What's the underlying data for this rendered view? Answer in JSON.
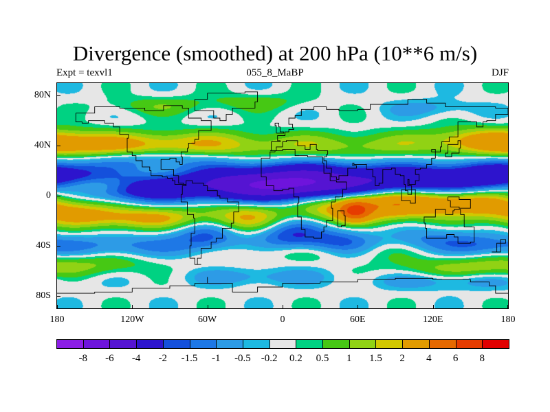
{
  "chart_data": {
    "type": "contour map",
    "title": "Divergence (smoothed) at 200 hPa (10**6 m/s)",
    "subtitle_left": "Expt = texvl1",
    "subtitle_center": "055_8_MaBP",
    "subtitle_right": "DJF",
    "xlim": [
      -180,
      180
    ],
    "ylim": [
      -90,
      90
    ],
    "xticks": [
      {
        "value": -180,
        "label": "180"
      },
      {
        "value": -120,
        "label": "120W"
      },
      {
        "value": -60,
        "label": "60W"
      },
      {
        "value": 0,
        "label": "0"
      },
      {
        "value": 60,
        "label": "60E"
      },
      {
        "value": 120,
        "label": "120E"
      },
      {
        "value": 180,
        "label": "180"
      }
    ],
    "yticks": [
      {
        "value": 80,
        "label": "80N"
      },
      {
        "value": 40,
        "label": "40N"
      },
      {
        "value": 0,
        "label": "0"
      },
      {
        "value": -40,
        "label": "40S"
      },
      {
        "value": -80,
        "label": "80S"
      }
    ],
    "levels": [
      -8,
      -6,
      -4,
      -2,
      -1.5,
      -1,
      -0.5,
      -0.2,
      0.2,
      0.5,
      1,
      1.5,
      2,
      4,
      6,
      8
    ],
    "level_labels": [
      "-8",
      "-6",
      "-4",
      "-2",
      "-1.5",
      "-1",
      "-0.5",
      "-0.2",
      "0.2",
      "0.5",
      "1",
      "1.5",
      "2",
      "4",
      "6",
      "8"
    ],
    "colors": [
      "#8c1ee6",
      "#6e14dc",
      "#5514d2",
      "#2d14cd",
      "#1450dc",
      "#1e78e6",
      "#2d9be6",
      "#1eb9e1",
      "#e6e6e6",
      "#00d282",
      "#46c814",
      "#91d214",
      "#d2c800",
      "#e19b00",
      "#e66900",
      "#e63c00",
      "#e10000"
    ],
    "field_features": [
      {
        "lon": -120,
        "lat": 5,
        "amp": -2.4,
        "sx": 30,
        "sy": 7
      },
      {
        "lon": -40,
        "lat": 8,
        "amp": -3.2,
        "sx": 45,
        "sy": 9
      },
      {
        "lon": 20,
        "lat": 10,
        "amp": -5.0,
        "sx": 45,
        "sy": 10
      },
      {
        "lon": 110,
        "lat": 12,
        "amp": -2.6,
        "sx": 40,
        "sy": 9
      },
      {
        "lon": 160,
        "lat": 15,
        "amp": -1.8,
        "sx": 30,
        "sy": 8
      },
      {
        "lon": -170,
        "lat": 18,
        "amp": -1.6,
        "sx": 25,
        "sy": 7
      },
      {
        "lon": -100,
        "lat": 30,
        "amp": -1.4,
        "sx": 40,
        "sy": 6
      },
      {
        "lon": -140,
        "lat": 40,
        "amp": 1.7,
        "sx": 45,
        "sy": 7
      },
      {
        "lon": -60,
        "lat": 40,
        "amp": 1.6,
        "sx": 50,
        "sy": 8
      },
      {
        "lon": 60,
        "lat": 40,
        "amp": 1.2,
        "sx": 50,
        "sy": 7
      },
      {
        "lon": 150,
        "lat": 45,
        "amp": 1.5,
        "sx": 30,
        "sy": 7
      },
      {
        "lon": -175,
        "lat": 42,
        "amp": 1.3,
        "sx": 25,
        "sy": 7
      },
      {
        "lon": -150,
        "lat": 8,
        "amp": 1.5,
        "sx": 25,
        "sy": 5
      },
      {
        "lon": -30,
        "lat": -18,
        "amp": 2.5,
        "sx": 35,
        "sy": 9
      },
      {
        "lon": 60,
        "lat": -8,
        "amp": 3.0,
        "sx": 40,
        "sy": 9
      },
      {
        "lon": 58,
        "lat": -12,
        "amp": 4.5,
        "sx": 8,
        "sy": 5
      },
      {
        "lon": 95,
        "lat": -5,
        "amp": 2.0,
        "sx": 30,
        "sy": 7
      },
      {
        "lon": 150,
        "lat": -5,
        "amp": 2.3,
        "sx": 30,
        "sy": 7
      },
      {
        "lon": -165,
        "lat": -15,
        "amp": 2.0,
        "sx": 30,
        "sy": 7
      },
      {
        "lon": -110,
        "lat": -18,
        "amp": 1.8,
        "sx": 30,
        "sy": 6
      },
      {
        "lon": -60,
        "lat": -30,
        "amp": -2.0,
        "sx": 20,
        "sy": 10
      },
      {
        "lon": 5,
        "lat": -28,
        "amp": -2.4,
        "sx": 20,
        "sy": 12
      },
      {
        "lon": 45,
        "lat": -38,
        "amp": -1.8,
        "sx": 20,
        "sy": 8
      },
      {
        "lon": -130,
        "lat": -40,
        "amp": -1.2,
        "sx": 45,
        "sy": 6
      },
      {
        "lon": 120,
        "lat": -35,
        "amp": -1.1,
        "sx": 25,
        "sy": 7
      },
      {
        "lon": 160,
        "lat": -40,
        "amp": -1.0,
        "sx": 20,
        "sy": 6
      },
      {
        "lon": -160,
        "lat": -55,
        "amp": 0.9,
        "sx": 40,
        "sy": 6
      },
      {
        "lon": 20,
        "lat": -45,
        "amp": 1.0,
        "sx": 50,
        "sy": 6
      },
      {
        "lon": 140,
        "lat": -58,
        "amp": 1.0,
        "sx": 40,
        "sy": 6
      },
      {
        "lon": -20,
        "lat": -65,
        "amp": -0.8,
        "sx": 40,
        "sy": 5
      },
      {
        "lon": 130,
        "lat": -68,
        "amp": -0.9,
        "sx": 40,
        "sy": 5
      },
      {
        "lon": -20,
        "lat": 75,
        "amp": 0.7,
        "sx": 30,
        "sy": 5
      },
      {
        "lon": -100,
        "lat": 72,
        "amp": 0.8,
        "sx": 30,
        "sy": 5
      },
      {
        "lon": 120,
        "lat": 70,
        "amp": -0.7,
        "sx": 25,
        "sy": 5
      }
    ],
    "coastlines": [
      [
        [
          -165,
          66
        ],
        [
          -150,
          71
        ],
        [
          -130,
          70
        ],
        [
          -110,
          68
        ],
        [
          -95,
          72
        ],
        [
          -80,
          70
        ],
        [
          -75,
          62
        ],
        [
          -65,
          60
        ],
        [
          -57,
          52
        ],
        [
          -67,
          45
        ],
        [
          -70,
          42
        ],
        [
          -75,
          38
        ],
        [
          -76,
          35
        ],
        [
          -81,
          31
        ],
        [
          -80,
          25
        ],
        [
          -82,
          27
        ],
        [
          -85,
          30
        ],
        [
          -90,
          29
        ],
        [
          -97,
          26
        ],
        [
          -97,
          21
        ],
        [
          -90,
          21
        ],
        [
          -87,
          16
        ],
        [
          -83,
          10
        ],
        [
          -79,
          9
        ],
        [
          -77,
          8
        ],
        [
          -80,
          1
        ],
        [
          -81,
          -5
        ],
        [
          -76,
          -15
        ],
        [
          -71,
          -18
        ],
        [
          -70,
          -30
        ],
        [
          -73,
          -40
        ],
        [
          -74,
          -50
        ],
        [
          -70,
          -55
        ],
        [
          -65,
          -55
        ],
        [
          -68,
          -50
        ],
        [
          -65,
          -42
        ],
        [
          -57,
          -37
        ],
        [
          -53,
          -34
        ],
        [
          -48,
          -26
        ],
        [
          -41,
          -22
        ],
        [
          -39,
          -13
        ],
        [
          -35,
          -8
        ],
        [
          -35,
          -5
        ],
        [
          -44,
          -2
        ],
        [
          -50,
          0
        ],
        [
          -52,
          4
        ],
        [
          -60,
          8
        ],
        [
          -63,
          10
        ],
        [
          -72,
          12
        ],
        [
          -77,
          9
        ],
        [
          -83,
          9
        ],
        [
          -86,
          12
        ],
        [
          -88,
          14
        ],
        [
          -92,
          15
        ],
        [
          -96,
          16
        ],
        [
          -105,
          20
        ],
        [
          -106,
          23
        ],
        [
          -110,
          23
        ],
        [
          -112,
          28
        ],
        [
          -117,
          32
        ],
        [
          -120,
          35
        ],
        [
          -124,
          40
        ],
        [
          -124,
          46
        ],
        [
          -123,
          49
        ],
        [
          -130,
          55
        ],
        [
          -135,
          58
        ],
        [
          -142,
          60
        ],
        [
          -150,
          60
        ],
        [
          -155,
          58
        ],
        [
          -160,
          59
        ],
        [
          -165,
          60
        ],
        [
          -165,
          66
        ]
      ],
      [
        [
          -10,
          36
        ],
        [
          -9,
          43
        ],
        [
          -2,
          44
        ],
        [
          -4,
          48
        ],
        [
          2,
          51
        ],
        [
          5,
          53
        ],
        [
          9,
          54
        ],
        [
          8,
          57
        ],
        [
          5,
          62
        ],
        [
          10,
          64
        ],
        [
          15,
          69
        ],
        [
          25,
          71
        ],
        [
          35,
          69
        ],
        [
          45,
          68
        ],
        [
          60,
          69
        ],
        [
          70,
          73
        ],
        [
          80,
          73
        ],
        [
          100,
          77
        ],
        [
          115,
          74
        ],
        [
          130,
          71
        ],
        [
          150,
          71
        ],
        [
          170,
          70
        ],
        [
          180,
          69
        ],
        [
          180,
          65
        ],
        [
          170,
          60
        ],
        [
          163,
          59
        ],
        [
          160,
          55
        ],
        [
          155,
          59
        ],
        [
          140,
          54
        ],
        [
          140,
          47
        ],
        [
          133,
          43
        ],
        [
          127,
          39
        ],
        [
          126,
          35
        ],
        [
          122,
          37
        ],
        [
          119,
          35
        ],
        [
          122,
          30
        ],
        [
          119,
          25
        ],
        [
          115,
          22
        ],
        [
          110,
          21
        ],
        [
          106,
          17
        ],
        [
          109,
          12
        ],
        [
          106,
          9
        ],
        [
          101,
          13
        ],
        [
          100,
          8
        ],
        [
          103,
          1
        ],
        [
          100,
          4
        ],
        [
          98,
          9
        ],
        [
          97,
          16
        ],
        [
          94,
          17
        ],
        [
          90,
          22
        ],
        [
          87,
          21
        ],
        [
          80,
          15
        ],
        [
          80,
          10
        ],
        [
          77,
          8
        ],
        [
          74,
          15
        ],
        [
          72,
          21
        ],
        [
          67,
          25
        ],
        [
          61,
          25
        ],
        [
          57,
          26
        ],
        [
          56,
          24
        ],
        [
          59,
          22
        ],
        [
          52,
          16
        ],
        [
          45,
          13
        ],
        [
          43,
          15
        ],
        [
          39,
          22
        ],
        [
          35,
          28
        ],
        [
          33,
          31
        ],
        [
          35,
          33
        ],
        [
          36,
          36
        ],
        [
          28,
          37
        ],
        [
          27,
          41
        ],
        [
          22,
          37
        ],
        [
          18,
          40
        ],
        [
          12,
          44
        ],
        [
          10,
          44
        ],
        [
          3,
          43
        ],
        [
          0,
          39
        ],
        [
          -5,
          36
        ],
        [
          -10,
          36
        ]
      ],
      [
        [
          -6,
          35
        ],
        [
          -10,
          30
        ],
        [
          -17,
          21
        ],
        [
          -17,
          15
        ],
        [
          -13,
          8
        ],
        [
          -7,
          4
        ],
        [
          0,
          5
        ],
        [
          5,
          6
        ],
        [
          9,
          4
        ],
        [
          9,
          -1
        ],
        [
          13,
          -6
        ],
        [
          12,
          -17
        ],
        [
          15,
          -27
        ],
        [
          18,
          -33
        ],
        [
          25,
          -34
        ],
        [
          31,
          -29
        ],
        [
          33,
          -25
        ],
        [
          35,
          -20
        ],
        [
          40,
          -16
        ],
        [
          40,
          -10
        ],
        [
          39,
          -5
        ],
        [
          42,
          -1
        ],
        [
          48,
          5
        ],
        [
          51,
          11
        ],
        [
          45,
          11
        ],
        [
          43,
          12
        ],
        [
          38,
          18
        ],
        [
          33,
          26
        ],
        [
          32,
          31
        ],
        [
          20,
          32
        ],
        [
          10,
          37
        ],
        [
          0,
          36
        ],
        [
          -6,
          35
        ]
      ],
      [
        [
          113,
          -22
        ],
        [
          114,
          -26
        ],
        [
          115,
          -34
        ],
        [
          123,
          -34
        ],
        [
          131,
          -31
        ],
        [
          137,
          -33
        ],
        [
          140,
          -38
        ],
        [
          145,
          -38
        ],
        [
          150,
          -37
        ],
        [
          153,
          -28
        ],
        [
          153,
          -25
        ],
        [
          145,
          -15
        ],
        [
          142,
          -11
        ],
        [
          137,
          -12
        ],
        [
          136,
          -15
        ],
        [
          130,
          -11
        ],
        [
          122,
          -17
        ],
        [
          113,
          -22
        ]
      ],
      [
        [
          44,
          -25
        ],
        [
          47,
          -24
        ],
        [
          50,
          -16
        ],
        [
          49,
          -12
        ],
        [
          44,
          -16
        ],
        [
          44,
          -25
        ]
      ],
      [
        [
          -60,
          82
        ],
        [
          -30,
          83
        ],
        [
          -20,
          80
        ],
        [
          -20,
          75
        ],
        [
          -22,
          70
        ],
        [
          -40,
          65
        ],
        [
          -45,
          60
        ],
        [
          -50,
          62
        ],
        [
          -55,
          68
        ],
        [
          -70,
          77
        ],
        [
          -60,
          82
        ]
      ],
      [
        [
          -180,
          -78
        ],
        [
          -150,
          -77
        ],
        [
          -120,
          -74
        ],
        [
          -90,
          -72
        ],
        [
          -70,
          -70
        ],
        [
          -60,
          -65
        ],
        [
          -60,
          -70
        ],
        [
          -40,
          -77
        ],
        [
          -20,
          -73
        ],
        [
          0,
          -70
        ],
        [
          30,
          -69
        ],
        [
          60,
          -67
        ],
        [
          90,
          -66
        ],
        [
          120,
          -67
        ],
        [
          150,
          -69
        ],
        [
          165,
          -72
        ],
        [
          170,
          -78
        ],
        [
          180,
          -78
        ]
      ],
      [
        [
          -5,
          50
        ],
        [
          1,
          51
        ],
        [
          -2,
          55
        ],
        [
          -3,
          58
        ],
        [
          -6,
          56
        ],
        [
          -5,
          50
        ]
      ],
      [
        [
          130,
          31
        ],
        [
          135,
          34
        ],
        [
          141,
          38
        ],
        [
          142,
          44
        ],
        [
          140,
          41
        ],
        [
          132,
          34
        ],
        [
          130,
          31
        ]
      ],
      [
        [
          95,
          5
        ],
        [
          106,
          -6
        ],
        [
          102,
          -4
        ],
        [
          95,
          5
        ]
      ],
      [
        [
          132,
          -1
        ],
        [
          141,
          -3
        ],
        [
          150,
          -10
        ],
        [
          141,
          -9
        ],
        [
          134,
          -4
        ],
        [
          132,
          -1
        ]
      ],
      [
        [
          167,
          -45
        ],
        [
          174,
          -40
        ],
        [
          174,
          -35
        ],
        [
          178,
          -38
        ],
        [
          171,
          -45
        ],
        [
          167,
          -45
        ]
      ]
    ]
  }
}
